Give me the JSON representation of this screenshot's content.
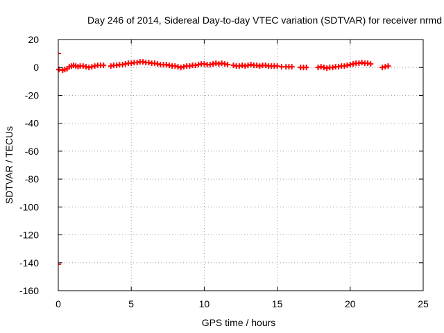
{
  "chart_data": {
    "type": "scatter",
    "title": "Day 246 of 2014, Sidereal Day-to-day VTEC variation (SDTVAR) for receiver nrmd",
    "xlabel": "GPS time / hours",
    "ylabel": "SDTVAR / TECUs",
    "xlim": [
      0,
      25
    ],
    "ylim": [
      -160,
      20
    ],
    "xticks": [
      "0",
      "5",
      "10",
      "15",
      "20",
      "25"
    ],
    "yticks": [
      "20",
      "0",
      "-20",
      "-40",
      "-60",
      "-80",
      "-100",
      "-120",
      "-140",
      "-160"
    ],
    "grid": true,
    "marker": "plus",
    "series_color": "#ff0000",
    "series": [
      {
        "x": [
          0.05,
          0.3,
          0.45,
          0.6,
          0.75,
          0.9,
          1.05,
          1.2,
          1.35,
          1.5,
          1.7,
          1.9,
          2.1,
          2.3,
          2.5,
          2.7,
          2.9,
          3.1,
          3.6,
          3.8,
          4.0,
          4.2,
          4.4,
          4.6,
          4.8,
          5.0,
          5.2,
          5.4,
          5.6,
          5.8,
          6.0,
          6.2,
          6.4,
          6.6,
          6.8,
          7.0,
          7.2,
          7.4,
          7.6,
          7.8,
          8.0,
          8.2,
          8.4,
          8.6,
          8.8,
          9.0,
          9.2,
          9.4,
          9.6,
          9.8,
          10.0,
          10.2,
          10.4,
          10.6,
          10.8,
          11.0,
          11.2,
          11.4,
          11.6,
          12.0,
          12.2,
          12.4,
          12.6,
          12.8,
          13.0,
          13.2,
          13.4,
          13.6,
          13.8,
          14.0,
          14.2,
          14.4,
          14.6,
          14.8,
          15.0,
          15.3,
          15.6,
          15.8,
          16.0,
          16.6,
          16.8,
          17.0,
          17.8,
          18.0,
          18.2,
          18.4,
          18.6,
          18.8,
          19.0,
          19.2,
          19.4,
          19.6,
          19.8,
          20.0,
          20.2,
          20.4,
          20.6,
          20.8,
          21.0,
          21.2,
          21.4,
          22.2,
          22.4,
          22.6
        ],
        "y": [
          -1.5,
          -2,
          -1.5,
          -1,
          0.5,
          1,
          1.5,
          1,
          0.5,
          1,
          1,
          0.5,
          0,
          0.5,
          1,
          1.5,
          1.5,
          1.5,
          1,
          1.5,
          1.5,
          2,
          2,
          2.5,
          3,
          3,
          3.5,
          3.5,
          4,
          4,
          3.5,
          3.5,
          3,
          3,
          2.5,
          2,
          2,
          2,
          1.5,
          1,
          1,
          0.5,
          0,
          0.5,
          1,
          1,
          1.5,
          1.5,
          2,
          2.5,
          2.5,
          2,
          2,
          2.5,
          3,
          2.5,
          3,
          2.5,
          2,
          1.5,
          1,
          1,
          1.5,
          1,
          1.5,
          2,
          1.5,
          1.5,
          1,
          1.5,
          1.5,
          1,
          1,
          1,
          1,
          0.5,
          0.5,
          0.5,
          0.5,
          0,
          0,
          0,
          0,
          0.5,
          0,
          -0.5,
          0,
          0,
          0.5,
          0.5,
          1,
          1,
          1.5,
          2,
          2.5,
          3,
          3,
          3.5,
          3,
          3,
          2.5,
          0,
          0.5,
          1
        ]
      }
    ],
    "outliers": [
      {
        "x": 0.0,
        "y": 10
      },
      {
        "x": 0.0,
        "y": -141
      }
    ]
  }
}
